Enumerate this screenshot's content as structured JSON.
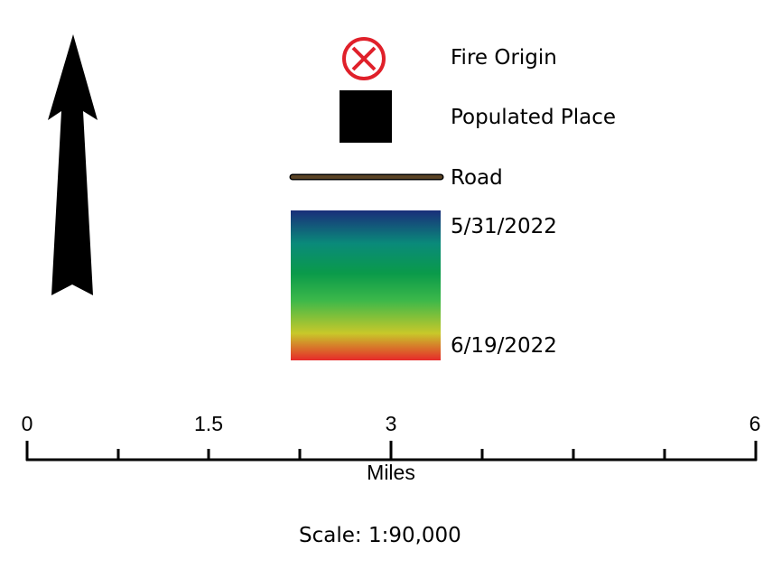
{
  "legend": {
    "fire_origin_label": "Fire Origin",
    "fire_origin_color": "#e0202a",
    "populated_place_label": "Populated Place",
    "road_label": "Road",
    "road_color": "#5a4325",
    "date_ramp": {
      "start_label": "5/31/2022",
      "end_label": "6/19/2022",
      "colors": [
        "#1a2e7a",
        "#0a8a7a",
        "#0a9a4a",
        "#3cb84a",
        "#c8c82a",
        "#e62a2a"
      ]
    }
  },
  "north_arrow": {
    "icon": "north-arrow-icon"
  },
  "scale_bar": {
    "unit_label": "Miles",
    "tick_labels": [
      "0",
      "1.5",
      "3",
      "6"
    ],
    "scale_text": "Scale: 1:90,000"
  }
}
